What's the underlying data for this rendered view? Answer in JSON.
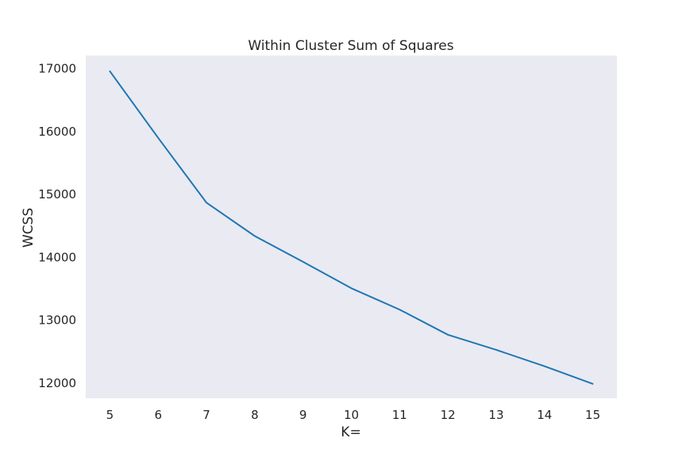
{
  "chart_data": {
    "type": "line",
    "title": "Within Cluster Sum of Squares",
    "xlabel": "K=",
    "ylabel": "WCSS",
    "x": [
      5,
      6,
      7,
      8,
      9,
      10,
      11,
      12,
      13,
      14,
      15
    ],
    "series": [
      {
        "values": [
          16960,
          15900,
          14870,
          14340,
          13930,
          13510,
          13170,
          12770,
          12530,
          12270,
          11990
        ]
      }
    ],
    "x_ticks": [
      "5",
      "6",
      "7",
      "8",
      "9",
      "10",
      "11",
      "12",
      "13",
      "14",
      "15"
    ],
    "y_ticks": [
      "12000",
      "13000",
      "14000",
      "15000",
      "16000",
      "17000"
    ],
    "xlim": [
      4.5,
      15.5
    ],
    "ylim": [
      11760,
      17210
    ],
    "grid": false,
    "colors": {
      "plot_background": "#eaeaf2",
      "line": "#1f77b4"
    }
  }
}
